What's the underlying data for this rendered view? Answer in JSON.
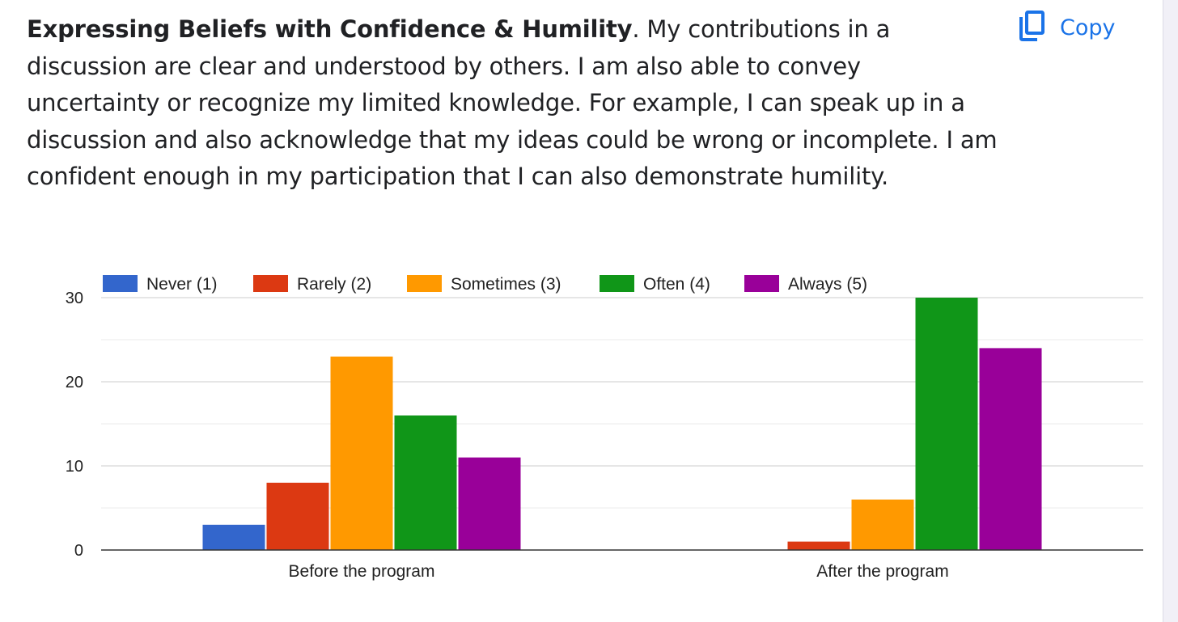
{
  "question": {
    "title": "Expressing Beliefs with Confidence & Humility",
    "body": ". My contributions in a discussion are clear and understood by others. I am also able to convey uncertainty or recognize my limited knowledge. For example, I can speak up in a discussion and also acknowledge that my ideas could be wrong or incomplete. I am confident enough in my participation that I can also demonstrate humility."
  },
  "copy_button": {
    "label": "Copy",
    "icon": "copy-icon",
    "color": "#1a73e8"
  },
  "chart_data": {
    "type": "bar",
    "categories": [
      "Before the program",
      "After the program"
    ],
    "series": [
      {
        "name": "Never (1)",
        "color": "#3366cc",
        "values": [
          3,
          0
        ]
      },
      {
        "name": "Rarely (2)",
        "color": "#dc3912",
        "values": [
          8,
          1
        ]
      },
      {
        "name": "Sometimes (3)",
        "color": "#ff9900",
        "values": [
          23,
          6
        ]
      },
      {
        "name": "Often (4)",
        "color": "#109618",
        "values": [
          16,
          30
        ]
      },
      {
        "name": "Always (5)",
        "color": "#990099",
        "values": [
          11,
          24
        ]
      }
    ],
    "ylim": [
      0,
      30
    ],
    "yticks": [
      "0",
      "10",
      "20",
      "30"
    ],
    "grid": true,
    "legend": "top-left"
  }
}
